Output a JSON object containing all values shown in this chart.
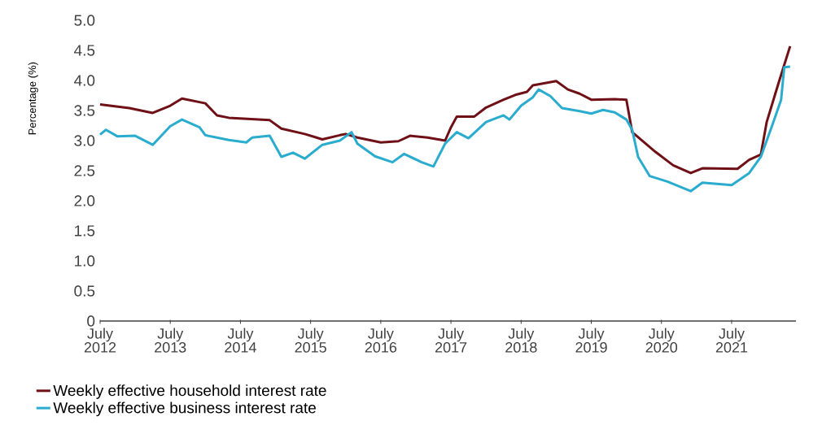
{
  "chart_data": {
    "type": "line",
    "ylabel": "Percentage (%)",
    "xlim": [
      "2012-07",
      "2022-06"
    ],
    "ylim": [
      0,
      5
    ],
    "xticks": [
      {
        "value": "2012-07",
        "label": "July 2012"
      },
      {
        "value": "2013-07",
        "label": "July 2013"
      },
      {
        "value": "2014-07",
        "label": "July 2014"
      },
      {
        "value": "2015-07",
        "label": "July 2015"
      },
      {
        "value": "2016-07",
        "label": "July 2016"
      },
      {
        "value": "2017-07",
        "label": "July 2017"
      },
      {
        "value": "2018-07",
        "label": "July 2018"
      },
      {
        "value": "2019-07",
        "label": "July 2019"
      },
      {
        "value": "2020-07",
        "label": "July 2020"
      },
      {
        "value": "2021-07",
        "label": "July 2021"
      }
    ],
    "yticks": [
      0,
      0.5,
      {
        "value": 1,
        "label": "1.0"
      },
      1.5,
      {
        "value": 2,
        "label": "2.0"
      },
      2.5,
      {
        "value": 3,
        "label": "3.0"
      },
      3.5,
      {
        "value": 4,
        "label": "4.0"
      },
      4.5,
      {
        "value": 5,
        "label": "5.0"
      }
    ],
    "grid": false,
    "legend": "bottom",
    "marker": "none",
    "line_style": "solid",
    "series": [
      {
        "name": "Weekly effective household interest rate",
        "color": "#6e1016",
        "x": [
          "2012-07",
          "2012-12",
          "2013-04",
          "2013-07",
          "2013-09",
          "2014-01",
          "2014-03",
          "2014-05",
          "2014-12",
          "2015-02",
          "2015-06",
          "2015-08",
          "2015-09",
          "2015-12",
          "2016-01",
          "2016-03",
          "2016-07",
          "2016-10",
          "2016-12",
          "2017-03",
          "2017-06",
          "2017-07",
          "2017-08",
          "2017-11",
          "2018-01",
          "2018-04",
          "2018-06",
          "2018-08",
          "2018-09",
          "2019-01",
          "2019-03",
          "2019-05",
          "2019-07",
          "2019-11",
          "2020-01",
          "2020-02",
          "2020-06",
          "2020-09",
          "2020-12",
          "2021-02",
          "2021-08",
          "2021-10",
          "2021-12",
          "2022-01",
          "2022-03",
          "2022-05"
        ],
        "values": [
          3.6,
          3.54,
          3.46,
          3.58,
          3.7,
          3.62,
          3.42,
          3.38,
          3.34,
          3.2,
          3.11,
          3.05,
          3.02,
          3.09,
          3.11,
          3.05,
          2.97,
          2.99,
          3.08,
          3.05,
          3.0,
          3.22,
          3.4,
          3.4,
          3.55,
          3.68,
          3.76,
          3.81,
          3.92,
          3.99,
          3.85,
          3.78,
          3.68,
          3.69,
          3.68,
          3.14,
          2.81,
          2.59,
          2.46,
          2.54,
          2.53,
          2.68,
          2.77,
          3.31,
          3.95,
          4.57
        ]
      },
      {
        "name": "Weekly effective business interest rate",
        "color": "#2aaccf",
        "x": [
          "2012-07",
          "2012-08",
          "2012-10",
          "2013-01",
          "2013-04",
          "2013-07",
          "2013-09",
          "2013-12",
          "2014-01",
          "2014-05",
          "2014-08",
          "2014-09",
          "2014-12",
          "2015-02",
          "2015-04",
          "2015-06",
          "2015-09",
          "2015-12",
          "2016-02",
          "2016-03",
          "2016-06",
          "2016-09",
          "2016-11",
          "2017-02",
          "2017-04",
          "2017-06",
          "2017-08",
          "2017-10",
          "2018-01",
          "2018-04",
          "2018-05",
          "2018-07",
          "2018-09",
          "2018-10",
          "2018-12",
          "2019-02",
          "2019-05",
          "2019-07",
          "2019-09",
          "2019-11",
          "2020-01",
          "2020-02",
          "2020-03",
          "2020-05",
          "2020-08",
          "2020-12",
          "2021-02",
          "2021-07",
          "2021-10",
          "2021-12",
          "2022-02",
          "2022-03-15",
          "2022-04",
          "2022-05"
        ],
        "values": [
          3.1,
          3.18,
          3.07,
          3.08,
          2.93,
          3.24,
          3.35,
          3.22,
          3.09,
          3.01,
          2.97,
          3.05,
          3.08,
          2.73,
          2.8,
          2.7,
          2.93,
          3.0,
          3.14,
          2.95,
          2.74,
          2.64,
          2.78,
          2.64,
          2.57,
          2.95,
          3.14,
          3.04,
          3.31,
          3.42,
          3.35,
          3.58,
          3.72,
          3.85,
          3.74,
          3.54,
          3.49,
          3.45,
          3.51,
          3.47,
          3.35,
          3.18,
          2.73,
          2.41,
          2.32,
          2.16,
          2.3,
          2.26,
          2.46,
          2.73,
          3.27,
          3.68,
          4.22,
          4.23
        ]
      }
    ]
  }
}
